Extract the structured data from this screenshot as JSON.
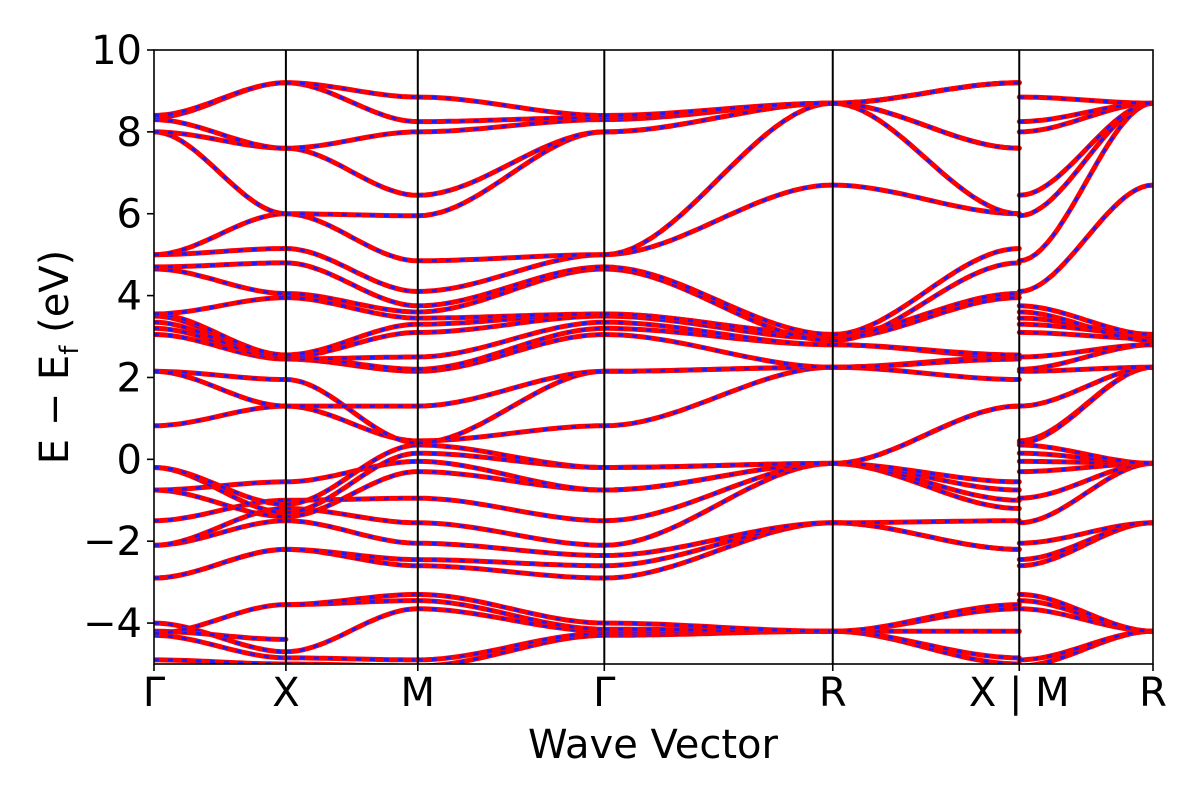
{
  "chart_data": {
    "type": "line",
    "title": "",
    "xlabel": "Wave Vector",
    "ylabel": "E − E",
    "ylabel_sub": "f",
    "ylabel_unit": "(eV)",
    "ylim": [
      -5,
      10
    ],
    "yticks": [
      -4,
      -2,
      0,
      2,
      4,
      6,
      8,
      10
    ],
    "ytick_labels": [
      "−4",
      "−2",
      "0",
      "2",
      "4",
      "6",
      "8",
      "10"
    ],
    "grid": false,
    "legend": "none",
    "colors": {
      "series_a": "#ff0000",
      "series_b": "#1a1aff",
      "kline": "#000000"
    },
    "kpath": [
      {
        "label": "Γ",
        "x": 0.0
      },
      {
        "label": "X",
        "x": 0.5
      },
      {
        "label": "M",
        "x": 1.0
      },
      {
        "label": "Γ",
        "x": 1.707
      },
      {
        "label": "R",
        "x": 2.573
      },
      {
        "label": "X | M",
        "x": 3.28
      },
      {
        "label": "R",
        "x": 3.787
      }
    ],
    "segments": [
      {
        "from": "Γ",
        "to": "X",
        "bands": [
          [
            -4.9,
            -5.0
          ],
          [
            -4.3,
            -4.85
          ],
          [
            -4.0,
            -4.7
          ],
          [
            -4.2,
            -4.4
          ],
          [
            -4.25,
            -3.55
          ],
          [
            -2.9,
            -2.2
          ],
          [
            -2.9,
            -2.2
          ],
          [
            -2.1,
            -1.5
          ],
          [
            -2.1,
            -1.2
          ],
          [
            -1.5,
            -1.0
          ],
          [
            -0.75,
            -1.4
          ],
          [
            -0.75,
            -0.55
          ],
          [
            -0.2,
            -1.3
          ],
          [
            -0.2,
            -1.1
          ],
          [
            0.82,
            1.3
          ],
          [
            2.15,
            1.95
          ],
          [
            2.15,
            1.3
          ],
          [
            3.05,
            2.45
          ],
          [
            3.2,
            2.5
          ],
          [
            3.35,
            2.45
          ],
          [
            3.5,
            2.5
          ],
          [
            3.55,
            2.55
          ],
          [
            3.55,
            3.95
          ],
          [
            4.65,
            4.05
          ],
          [
            4.7,
            4.8
          ],
          [
            5.0,
            5.15
          ],
          [
            5.0,
            6.0
          ],
          [
            8.0,
            6.0
          ],
          [
            8.0,
            7.6
          ],
          [
            8.3,
            7.6
          ],
          [
            8.35,
            9.2
          ],
          [
            8.4,
            9.2
          ]
        ]
      },
      {
        "from": "X",
        "to": "M",
        "bands": [
          [
            -5.0,
            -5.05
          ],
          [
            -4.85,
            -4.9
          ],
          [
            -4.7,
            -3.65
          ],
          [
            -3.55,
            -3.45
          ],
          [
            -3.55,
            -3.3
          ],
          [
            -2.2,
            -2.6
          ],
          [
            -2.2,
            -2.45
          ],
          [
            -1.5,
            -2.05
          ],
          [
            -1.2,
            -1.55
          ],
          [
            -1.0,
            -0.95
          ],
          [
            -1.4,
            -0.3
          ],
          [
            -0.55,
            -0.05
          ],
          [
            -1.3,
            0.15
          ],
          [
            -1.1,
            0.35
          ],
          [
            1.3,
            0.45
          ],
          [
            1.95,
            0.4
          ],
          [
            1.3,
            1.3
          ],
          [
            2.45,
            2.15
          ],
          [
            2.5,
            2.2
          ],
          [
            2.45,
            2.5
          ],
          [
            2.5,
            3.1
          ],
          [
            2.55,
            3.3
          ],
          [
            3.95,
            3.45
          ],
          [
            4.05,
            3.6
          ],
          [
            4.8,
            3.75
          ],
          [
            5.15,
            4.1
          ],
          [
            6.0,
            4.85
          ],
          [
            6.0,
            5.95
          ],
          [
            7.6,
            6.45
          ],
          [
            7.6,
            8.0
          ],
          [
            9.2,
            8.25
          ],
          [
            9.2,
            8.85
          ]
        ]
      },
      {
        "from": "M",
        "to": "Γ",
        "bands": [
          [
            -5.05,
            -4.3
          ],
          [
            -4.9,
            -4.25
          ],
          [
            -3.65,
            -4.2
          ],
          [
            -3.45,
            -4.15
          ],
          [
            -3.3,
            -4.0
          ],
          [
            -2.6,
            -2.9
          ],
          [
            -2.45,
            -2.6
          ],
          [
            -2.05,
            -2.35
          ],
          [
            -1.55,
            -2.1
          ],
          [
            -0.95,
            -1.5
          ],
          [
            -0.3,
            -0.75
          ],
          [
            -0.05,
            -0.75
          ],
          [
            0.15,
            -0.2
          ],
          [
            0.35,
            -0.2
          ],
          [
            0.45,
            0.82
          ],
          [
            0.4,
            2.15
          ],
          [
            1.3,
            2.15
          ],
          [
            2.15,
            3.05
          ],
          [
            2.2,
            3.2
          ],
          [
            2.5,
            3.35
          ],
          [
            3.1,
            3.5
          ],
          [
            3.3,
            3.55
          ],
          [
            3.45,
            3.55
          ],
          [
            3.6,
            4.65
          ],
          [
            3.75,
            4.7
          ],
          [
            4.1,
            5.0
          ],
          [
            4.85,
            5.0
          ],
          [
            5.95,
            8.0
          ],
          [
            6.45,
            8.0
          ],
          [
            8.0,
            8.3
          ],
          [
            8.25,
            8.35
          ],
          [
            8.85,
            8.4
          ]
        ]
      },
      {
        "from": "Γ",
        "to": "R",
        "bands": [
          [
            -4.3,
            -4.2
          ],
          [
            -4.25,
            -4.2
          ],
          [
            -4.2,
            -4.2
          ],
          [
            -4.15,
            -4.2
          ],
          [
            -4.0,
            -4.2
          ],
          [
            -2.9,
            -1.55
          ],
          [
            -2.6,
            -1.55
          ],
          [
            -2.35,
            -1.55
          ],
          [
            -2.1,
            -0.1
          ],
          [
            -1.5,
            -0.1
          ],
          [
            -0.75,
            -0.1
          ],
          [
            -0.75,
            -0.1
          ],
          [
            -0.2,
            -0.1
          ],
          [
            -0.2,
            -0.1
          ],
          [
            0.82,
            2.25
          ],
          [
            2.15,
            2.25
          ],
          [
            2.15,
            2.25
          ],
          [
            3.05,
            2.25
          ],
          [
            3.2,
            2.8
          ],
          [
            3.35,
            2.8
          ],
          [
            3.5,
            2.95
          ],
          [
            3.55,
            3.05
          ],
          [
            3.55,
            3.05
          ],
          [
            4.65,
            2.9
          ],
          [
            4.7,
            3.05
          ],
          [
            5.0,
            6.7
          ],
          [
            5.0,
            8.7
          ],
          [
            8.0,
            8.7
          ],
          [
            8.0,
            8.7
          ],
          [
            8.3,
            8.7
          ],
          [
            8.35,
            8.7
          ],
          [
            8.4,
            8.7
          ]
        ]
      },
      {
        "from": "R",
        "to": "X",
        "bands": [
          [
            -4.2,
            -5.0
          ],
          [
            -4.2,
            -4.85
          ],
          [
            -4.2,
            -4.2
          ],
          [
            -4.2,
            -3.65
          ],
          [
            -4.2,
            -3.55
          ],
          [
            -1.55,
            -2.2
          ],
          [
            -1.55,
            -2.2
          ],
          [
            -1.55,
            -1.5
          ],
          [
            -0.1,
            -1.2
          ],
          [
            -0.1,
            -1.0
          ],
          [
            -0.1,
            -0.75
          ],
          [
            -0.1,
            -0.55
          ],
          [
            -0.1,
            1.3
          ],
          [
            -0.1,
            1.3
          ],
          [
            2.25,
            1.95
          ],
          [
            2.25,
            2.45
          ],
          [
            2.25,
            2.5
          ],
          [
            2.25,
            2.45
          ],
          [
            2.8,
            2.5
          ],
          [
            2.8,
            2.55
          ],
          [
            2.95,
            3.95
          ],
          [
            3.05,
            4.05
          ],
          [
            3.05,
            4.05
          ],
          [
            2.9,
            4.8
          ],
          [
            3.05,
            5.15
          ],
          [
            6.7,
            6.0
          ],
          [
            8.7,
            6.0
          ],
          [
            8.7,
            7.6
          ],
          [
            8.7,
            7.6
          ],
          [
            8.7,
            9.2
          ],
          [
            8.7,
            9.2
          ],
          [
            8.7,
            9.2
          ]
        ]
      },
      {
        "from": "M",
        "to": "R",
        "bands": [
          [
            -5.05,
            -4.2
          ],
          [
            -4.9,
            -4.2
          ],
          [
            -3.65,
            -4.2
          ],
          [
            -3.45,
            -4.2
          ],
          [
            -3.3,
            -4.2
          ],
          [
            -2.6,
            -1.55
          ],
          [
            -2.45,
            -1.55
          ],
          [
            -2.05,
            -1.55
          ],
          [
            -1.55,
            -0.1
          ],
          [
            -0.95,
            -0.1
          ],
          [
            -0.3,
            -0.1
          ],
          [
            -0.05,
            -0.1
          ],
          [
            0.15,
            -0.1
          ],
          [
            0.35,
            -0.1
          ],
          [
            0.45,
            2.25
          ],
          [
            0.4,
            2.25
          ],
          [
            1.3,
            2.25
          ],
          [
            2.15,
            2.25
          ],
          [
            2.2,
            2.8
          ],
          [
            2.5,
            2.8
          ],
          [
            3.1,
            2.95
          ],
          [
            3.3,
            3.05
          ],
          [
            3.45,
            3.05
          ],
          [
            3.6,
            2.9
          ],
          [
            3.75,
            3.05
          ],
          [
            4.1,
            6.7
          ],
          [
            4.85,
            8.7
          ],
          [
            5.95,
            8.7
          ],
          [
            6.45,
            8.7
          ],
          [
            8.0,
            8.7
          ],
          [
            8.25,
            8.7
          ],
          [
            8.85,
            8.7
          ]
        ]
      }
    ]
  }
}
